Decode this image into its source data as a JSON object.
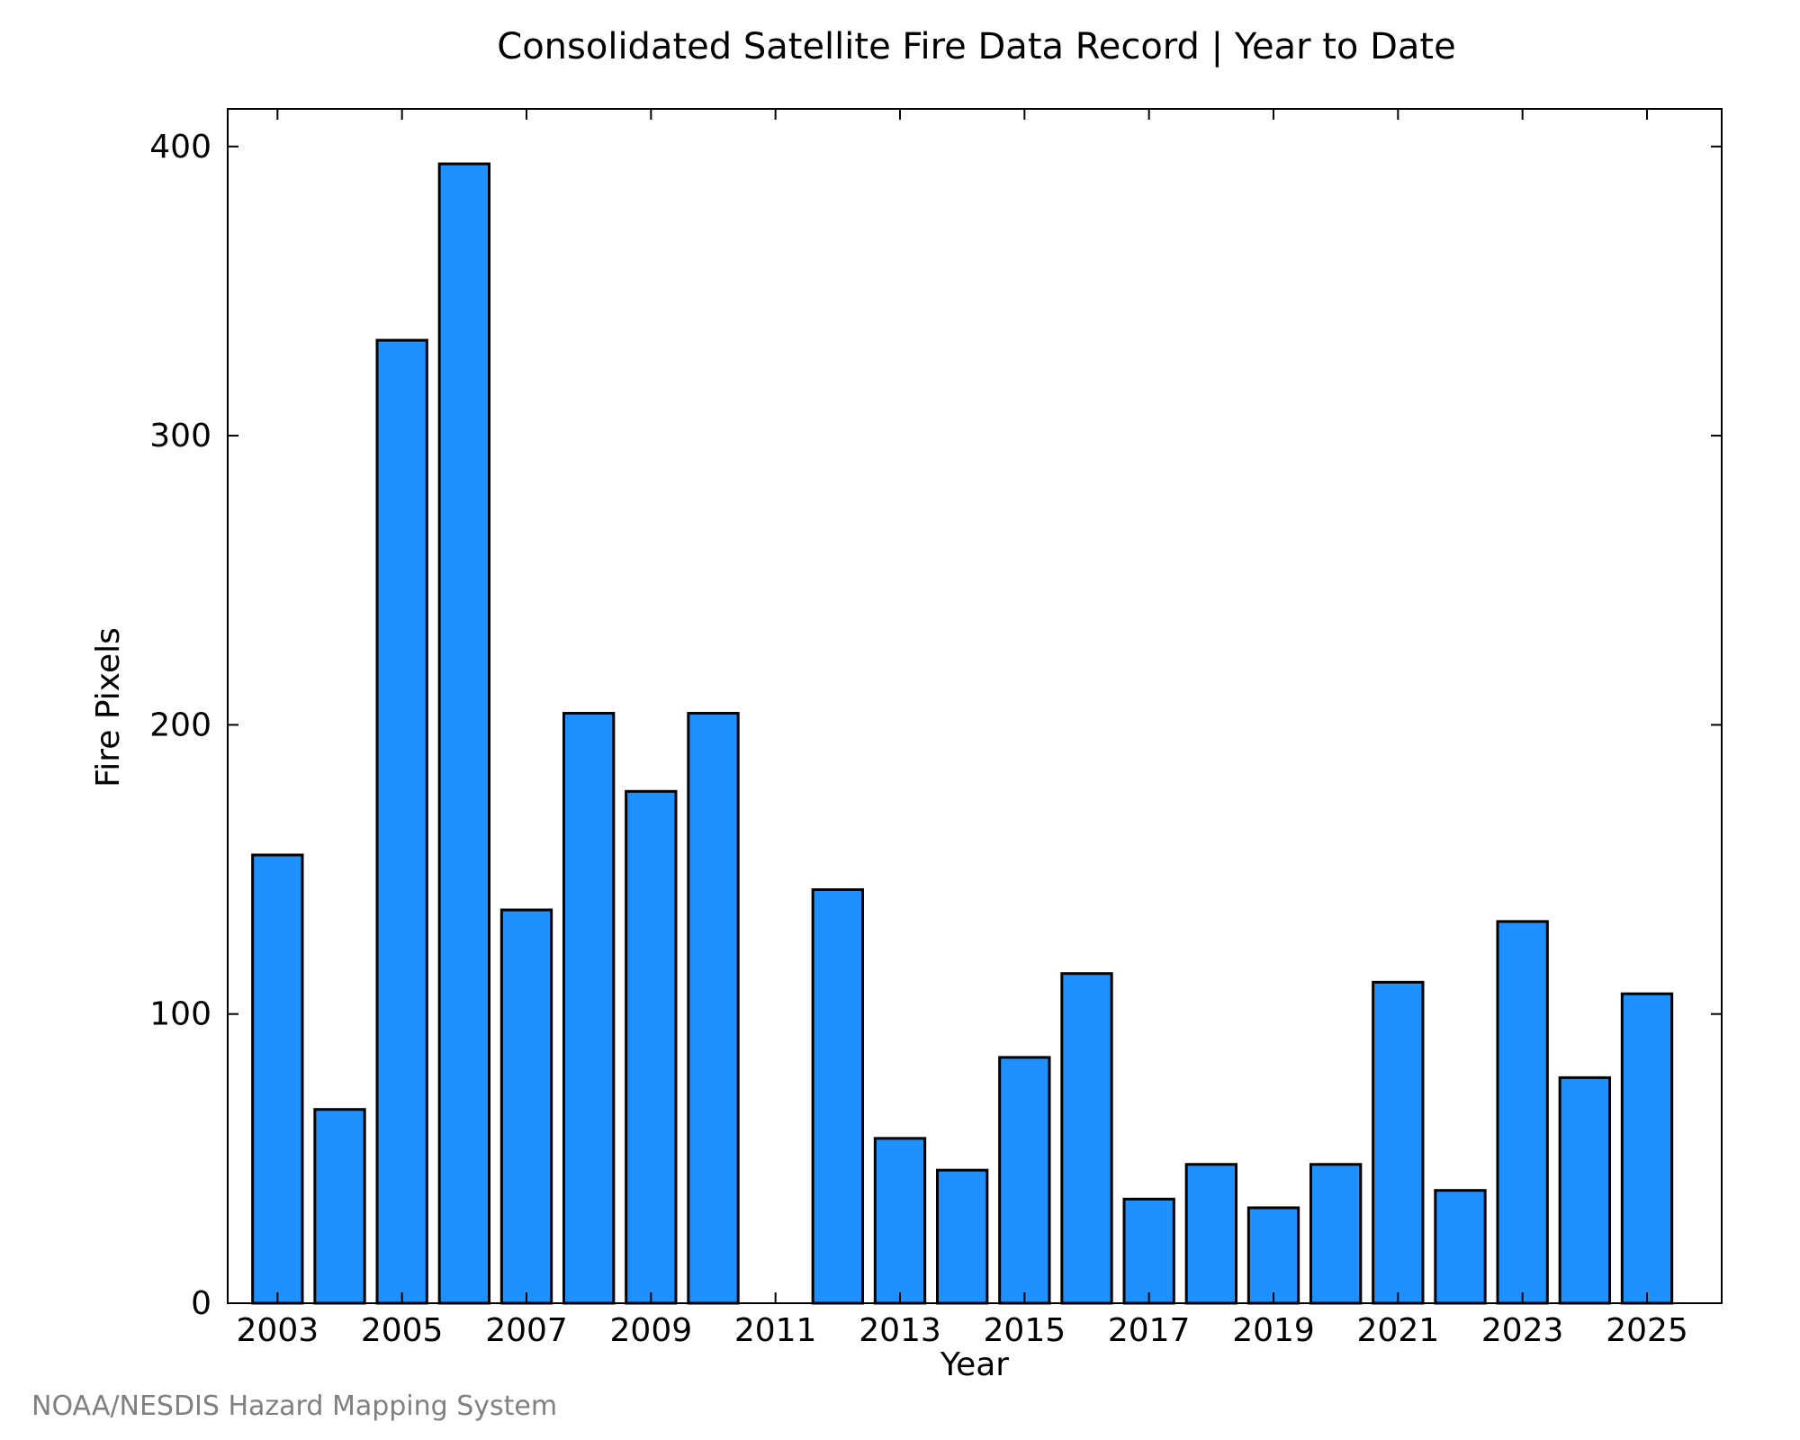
{
  "chart_data": {
    "type": "bar",
    "title": "Consolidated Satellite Fire Data Record | Year to Date",
    "xlabel": "Year",
    "ylabel": "Fire Pixels",
    "categories": [
      2003,
      2004,
      2005,
      2006,
      2007,
      2008,
      2009,
      2010,
      2011,
      2012,
      2013,
      2014,
      2015,
      2016,
      2017,
      2018,
      2019,
      2020,
      2021,
      2022,
      2023,
      2024,
      2025
    ],
    "values": [
      155,
      67,
      333,
      394,
      136,
      204,
      177,
      204,
      0,
      143,
      57,
      46,
      85,
      114,
      36,
      48,
      33,
      48,
      111,
      39,
      132,
      78,
      107
    ],
    "x_tick_labels": [
      "2003",
      "2005",
      "2007",
      "2009",
      "2011",
      "2013",
      "2015",
      "2017",
      "2019",
      "2021",
      "2023",
      "2025"
    ],
    "y_tick_labels": [
      "0",
      "100",
      "200",
      "300",
      "400"
    ],
    "y_ticks": [
      0,
      100,
      200,
      300,
      400
    ],
    "ylim": [
      0,
      413
    ],
    "xlim": [
      2002.2,
      2026.2
    ],
    "grid": false,
    "bar_color": "#1e90ff",
    "credit": "NOAA/NESDIS Hazard Mapping System"
  }
}
